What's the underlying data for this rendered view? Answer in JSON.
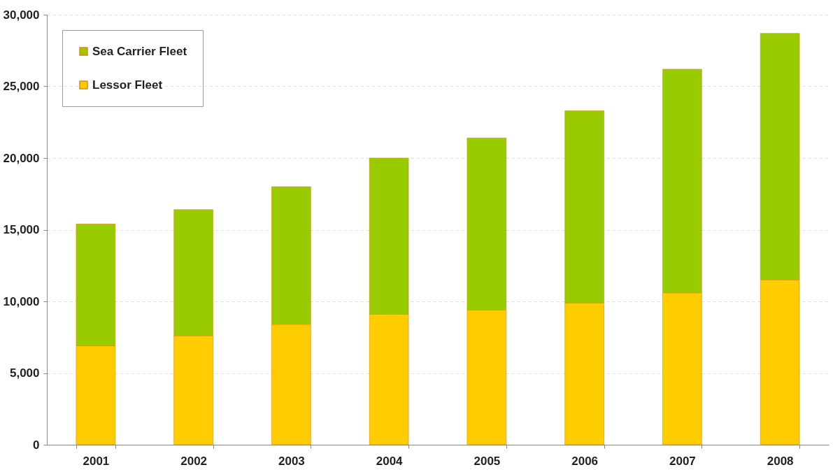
{
  "chart_data": {
    "type": "bar",
    "stacked": true,
    "categories": [
      "2001",
      "2002",
      "2003",
      "2004",
      "2005",
      "2006",
      "2007",
      "2008"
    ],
    "series": [
      {
        "name": "Lessor Fleet",
        "color": "#ffcc00",
        "values": [
          6900,
          7600,
          8400,
          9100,
          9400,
          9900,
          10600,
          11500
        ]
      },
      {
        "name": "Sea Carrier Fleet",
        "color": "#99cc00",
        "values": [
          8500,
          8800,
          9600,
          10900,
          12000,
          13400,
          15600,
          17200
        ]
      }
    ],
    "ylim": [
      0,
      30000
    ],
    "yticks": [
      {
        "value": 0,
        "label": "0"
      },
      {
        "value": 5000,
        "label": "5,000"
      },
      {
        "value": 10000,
        "label": "10,000"
      },
      {
        "value": 15000,
        "label": "15,000"
      },
      {
        "value": 20000,
        "label": "20,000"
      },
      {
        "value": 25000,
        "label": "25,000"
      },
      {
        "value": 30000,
        "label": "30,000"
      }
    ],
    "grid": "y",
    "legend": "top left"
  }
}
